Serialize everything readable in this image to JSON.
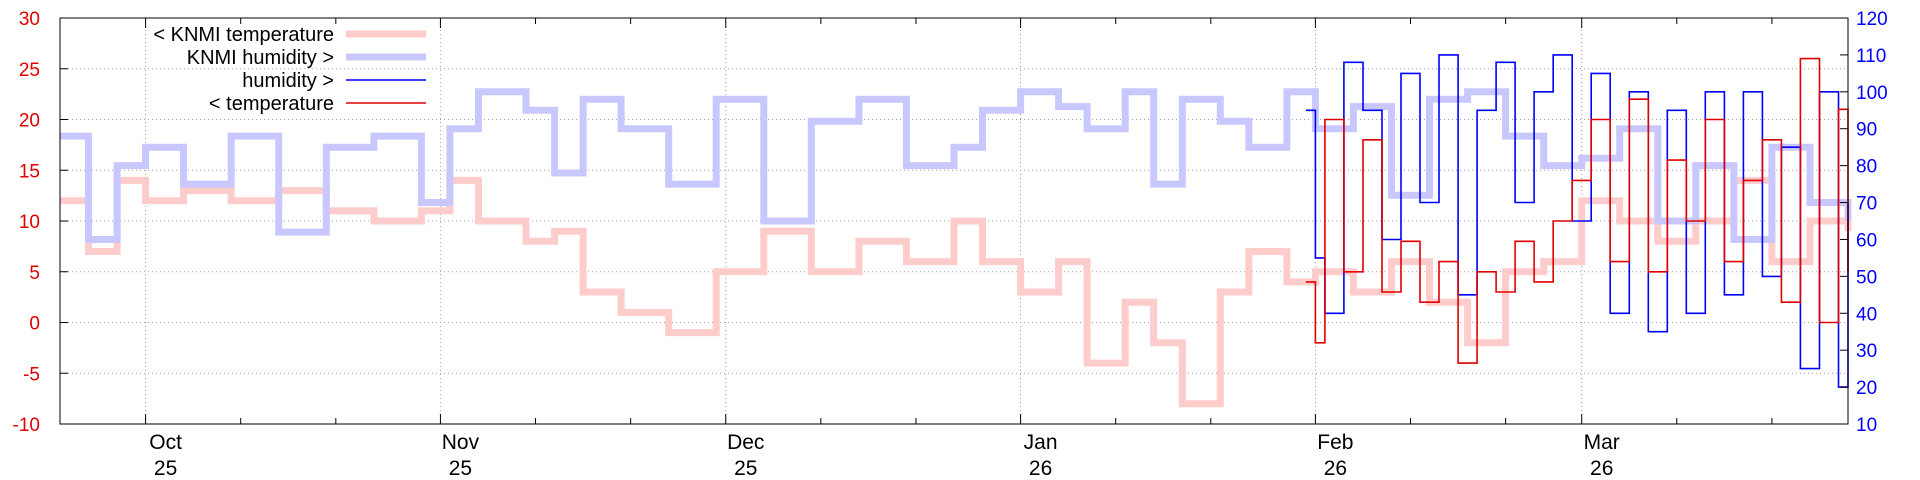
{
  "chart_data": {
    "type": "line",
    "title": "",
    "xlabel": "",
    "ylabel": "",
    "y2label": "",
    "x_range": [
      "2025-09-22",
      "2026-03-29"
    ],
    "ylim": [
      -10,
      30
    ],
    "y2lim": [
      10,
      120
    ],
    "y_ticks": [
      -10,
      -5,
      0,
      5,
      10,
      15,
      20,
      25,
      30
    ],
    "y2_ticks": [
      10,
      20,
      30,
      40,
      50,
      60,
      70,
      80,
      90,
      100,
      110,
      120
    ],
    "x_ticks": [
      {
        "date": "2025-10-01",
        "month": "Oct",
        "year": "25"
      },
      {
        "date": "2025-11-01",
        "month": "Nov",
        "year": "25"
      },
      {
        "date": "2025-12-01",
        "month": "Dec",
        "year": "25"
      },
      {
        "date": "2026-01-01",
        "month": "Jan",
        "year": "26"
      },
      {
        "date": "2026-02-01",
        "month": "Feb",
        "year": "26"
      },
      {
        "date": "2026-03-01",
        "month": "Mar",
        "year": "26"
      }
    ],
    "grid": true,
    "legend_position": "top-left",
    "series": [
      {
        "name": "< KNMI temperature",
        "axis": "left",
        "color": "#ffcccc",
        "style": "thick",
        "x": [
          "2025-09-22",
          "2025-09-25",
          "2025-09-28",
          "2025-10-01",
          "2025-10-05",
          "2025-10-10",
          "2025-10-15",
          "2025-10-20",
          "2025-10-25",
          "2025-10-30",
          "2025-11-02",
          "2025-11-05",
          "2025-11-10",
          "2025-11-13",
          "2025-11-16",
          "2025-11-20",
          "2025-11-25",
          "2025-11-30",
          "2025-12-05",
          "2025-12-10",
          "2025-12-15",
          "2025-12-20",
          "2025-12-25",
          "2025-12-28",
          "2026-01-01",
          "2026-01-05",
          "2026-01-08",
          "2026-01-12",
          "2026-01-15",
          "2026-01-18",
          "2026-01-22",
          "2026-01-25",
          "2026-01-29",
          "2026-02-01",
          "2026-02-05",
          "2026-02-09",
          "2026-02-13",
          "2026-02-17",
          "2026-02-21",
          "2026-02-25",
          "2026-03-01",
          "2026-03-05",
          "2026-03-09",
          "2026-03-13",
          "2026-03-17",
          "2026-03-21",
          "2026-03-25",
          "2026-03-29"
        ],
        "y": [
          12,
          7,
          14,
          12,
          13,
          12,
          13,
          11,
          10,
          11,
          14,
          10,
          8,
          9,
          3,
          1,
          -1,
          5,
          9,
          5,
          8,
          6,
          10,
          6,
          3,
          6,
          -4,
          2,
          -2,
          -8,
          3,
          7,
          4,
          5,
          3,
          6,
          2,
          -2,
          5,
          6,
          12,
          10,
          8,
          10,
          14,
          6,
          10,
          9
        ]
      },
      {
        "name": "KNMI humidity >",
        "axis": "right",
        "color": "#c8c8ff",
        "style": "thick",
        "x": [
          "2025-09-22",
          "2025-09-25",
          "2025-09-28",
          "2025-10-01",
          "2025-10-05",
          "2025-10-10",
          "2025-10-15",
          "2025-10-20",
          "2025-10-25",
          "2025-10-30",
          "2025-11-02",
          "2025-11-05",
          "2025-11-10",
          "2025-11-13",
          "2025-11-16",
          "2025-11-20",
          "2025-11-25",
          "2025-11-30",
          "2025-12-05",
          "2025-12-10",
          "2025-12-15",
          "2025-12-20",
          "2025-12-25",
          "2025-12-28",
          "2026-01-01",
          "2026-01-05",
          "2026-01-08",
          "2026-01-12",
          "2026-01-15",
          "2026-01-18",
          "2026-01-22",
          "2026-01-25",
          "2026-01-29",
          "2026-02-01",
          "2026-02-05",
          "2026-02-09",
          "2026-02-13",
          "2026-02-17",
          "2026-02-21",
          "2026-02-25",
          "2026-03-01",
          "2026-03-05",
          "2026-03-09",
          "2026-03-13",
          "2026-03-17",
          "2026-03-21",
          "2026-03-25",
          "2026-03-29"
        ],
        "y": [
          88,
          60,
          80,
          85,
          75,
          88,
          62,
          85,
          88,
          70,
          90,
          100,
          95,
          78,
          98,
          90,
          75,
          98,
          65,
          92,
          98,
          80,
          85,
          95,
          100,
          96,
          90,
          100,
          75,
          98,
          92,
          85,
          100,
          90,
          96,
          72,
          98,
          100,
          88,
          80,
          82,
          90,
          65,
          80,
          60,
          85,
          70,
          65
        ]
      },
      {
        "name": "humidity >",
        "axis": "right",
        "color": "#0000ff",
        "style": "thin",
        "x": [
          "2026-01-31",
          "2026-02-01",
          "2026-02-02",
          "2026-02-04",
          "2026-02-06",
          "2026-02-08",
          "2026-02-10",
          "2026-02-12",
          "2026-02-14",
          "2026-02-16",
          "2026-02-18",
          "2026-02-20",
          "2026-02-22",
          "2026-02-24",
          "2026-02-26",
          "2026-02-28",
          "2026-03-02",
          "2026-03-04",
          "2026-03-06",
          "2026-03-08",
          "2026-03-10",
          "2026-03-12",
          "2026-03-14",
          "2026-03-16",
          "2026-03-18",
          "2026-03-20",
          "2026-03-22",
          "2026-03-24",
          "2026-03-26",
          "2026-03-28",
          "2026-03-29"
        ],
        "y": [
          95,
          55,
          40,
          108,
          95,
          60,
          105,
          70,
          110,
          45,
          95,
          108,
          70,
          100,
          110,
          65,
          105,
          40,
          100,
          35,
          95,
          40,
          100,
          45,
          100,
          50,
          85,
          25,
          100,
          20,
          70
        ]
      },
      {
        "name": "< temperature",
        "axis": "left",
        "color": "#e00000",
        "style": "thin",
        "x": [
          "2026-01-31",
          "2026-02-01",
          "2026-02-02",
          "2026-02-04",
          "2026-02-06",
          "2026-02-08",
          "2026-02-10",
          "2026-02-12",
          "2026-02-14",
          "2026-02-16",
          "2026-02-18",
          "2026-02-20",
          "2026-02-22",
          "2026-02-24",
          "2026-02-26",
          "2026-02-28",
          "2026-03-02",
          "2026-03-04",
          "2026-03-06",
          "2026-03-08",
          "2026-03-10",
          "2026-03-12",
          "2026-03-14",
          "2026-03-16",
          "2026-03-18",
          "2026-03-20",
          "2026-03-22",
          "2026-03-24",
          "2026-03-26",
          "2026-03-28",
          "2026-03-29"
        ],
        "y": [
          4,
          -2,
          20,
          5,
          18,
          3,
          8,
          2,
          6,
          -4,
          5,
          3,
          8,
          4,
          10,
          14,
          20,
          6,
          22,
          5,
          16,
          10,
          20,
          6,
          14,
          18,
          2,
          26,
          0,
          21,
          5
        ]
      }
    ]
  }
}
